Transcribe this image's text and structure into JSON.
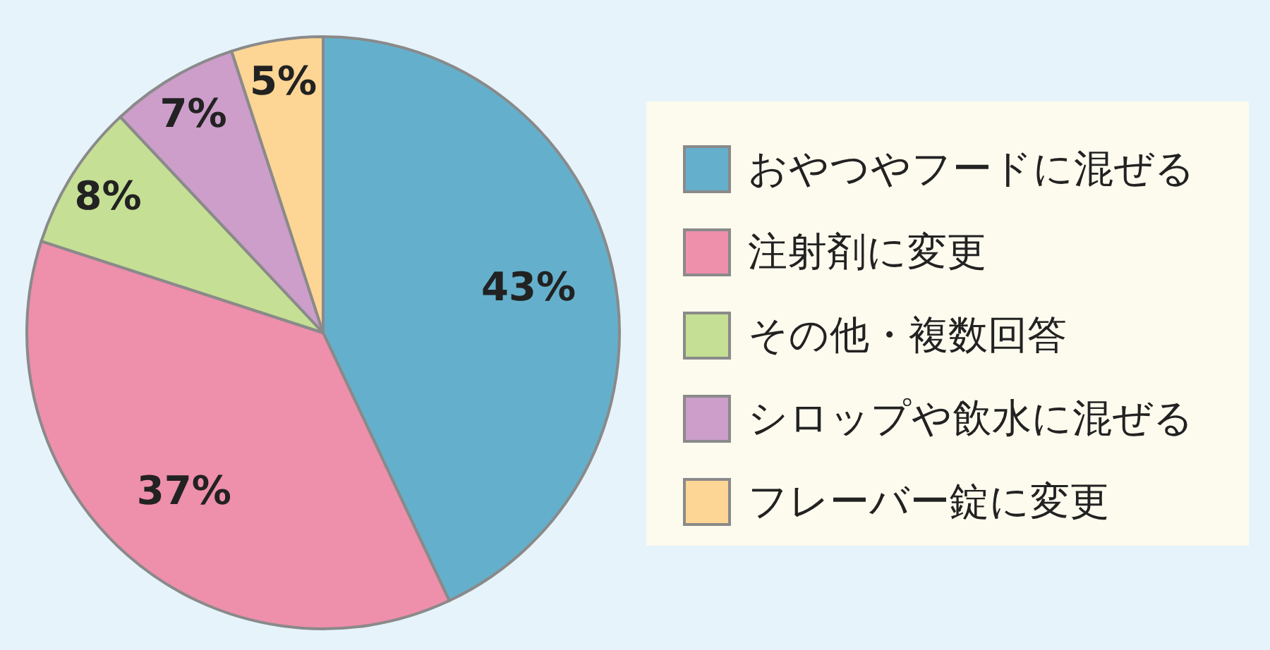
{
  "chart_data": {
    "type": "pie",
    "categories": [
      "おやつやフードに混ぜる",
      "注射剤に変更",
      "その他・複数回答",
      "シロップや飲水に混ぜる",
      "フレーバー錠に変更"
    ],
    "values": [
      43,
      37,
      8,
      7,
      5
    ],
    "value_labels": [
      "43%",
      "37%",
      "8%",
      "7%",
      "5%"
    ],
    "colors": [
      "#64b0cc",
      "#ee8fac",
      "#c5df94",
      "#cc9ec9",
      "#fdd594"
    ],
    "legend": "right"
  }
}
